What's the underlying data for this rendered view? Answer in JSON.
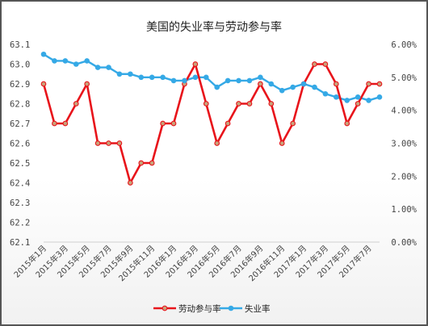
{
  "chart_data": {
    "type": "line",
    "title": "美国的失业率与劳动参与率",
    "categories": [
      "2015年1月",
      "2015年2月",
      "2015年3月",
      "2015年4月",
      "2015年5月",
      "2015年6月",
      "2015年7月",
      "2015年8月",
      "2015年9月",
      "2015年10月",
      "2015年11月",
      "2015年12月",
      "2016年1月",
      "2016年2月",
      "2016年3月",
      "2016年4月",
      "2016年5月",
      "2016年6月",
      "2016年7月",
      "2016年8月",
      "2016年9月",
      "2016年10月",
      "2016年11月",
      "2016年12月",
      "2017年1月",
      "2017年2月",
      "2017年3月",
      "2017年4月",
      "2017年5月",
      "2017年6月",
      "2017年7月",
      "2017年8月"
    ],
    "x_tick_labels": [
      "2015年1月",
      "2015年3月",
      "2015年5月",
      "2015年7月",
      "2015年9月",
      "2015年11月",
      "2016年1月",
      "2016年3月",
      "2016年5月",
      "2016年7月",
      "2016年9月",
      "2016年11月",
      "2017年1月",
      "2017年3月",
      "2017年5月",
      "2017年7月"
    ],
    "series": [
      {
        "name": "劳动参与率",
        "axis": "left",
        "color": "#e8141b",
        "marker_color": "#c9a27a",
        "values": [
          62.9,
          62.7,
          62.7,
          62.8,
          62.9,
          62.6,
          62.6,
          62.6,
          62.4,
          62.5,
          62.5,
          62.7,
          62.7,
          62.9,
          63.0,
          62.8,
          62.6,
          62.7,
          62.8,
          62.8,
          62.9,
          62.8,
          62.6,
          62.7,
          62.9,
          63.0,
          63.0,
          62.9,
          62.7,
          62.8,
          62.9,
          62.9
        ]
      },
      {
        "name": "失业率",
        "axis": "right",
        "color": "#35a9e6",
        "values": [
          5.7,
          5.5,
          5.5,
          5.4,
          5.5,
          5.3,
          5.3,
          5.1,
          5.1,
          5.0,
          5.0,
          5.0,
          4.9,
          4.9,
          5.0,
          5.0,
          4.7,
          4.9,
          4.9,
          4.9,
          5.0,
          4.8,
          4.6,
          4.7,
          4.8,
          4.7,
          4.5,
          4.4,
          4.3,
          4.4,
          4.3,
          4.4
        ]
      }
    ],
    "y_left": {
      "ticks": [
        "62.1",
        "62.2",
        "62.3",
        "62.4",
        "62.5",
        "62.6",
        "62.7",
        "62.8",
        "62.9",
        "63.0",
        "63.1"
      ],
      "ylim": [
        62.1,
        63.1
      ]
    },
    "y_right": {
      "ticks": [
        "0.00%",
        "1.00%",
        "2.00%",
        "3.00%",
        "4.00%",
        "5.00%",
        "6.00%"
      ],
      "ylim": [
        0,
        6
      ]
    },
    "grid": false,
    "legend_position": "bottom"
  }
}
